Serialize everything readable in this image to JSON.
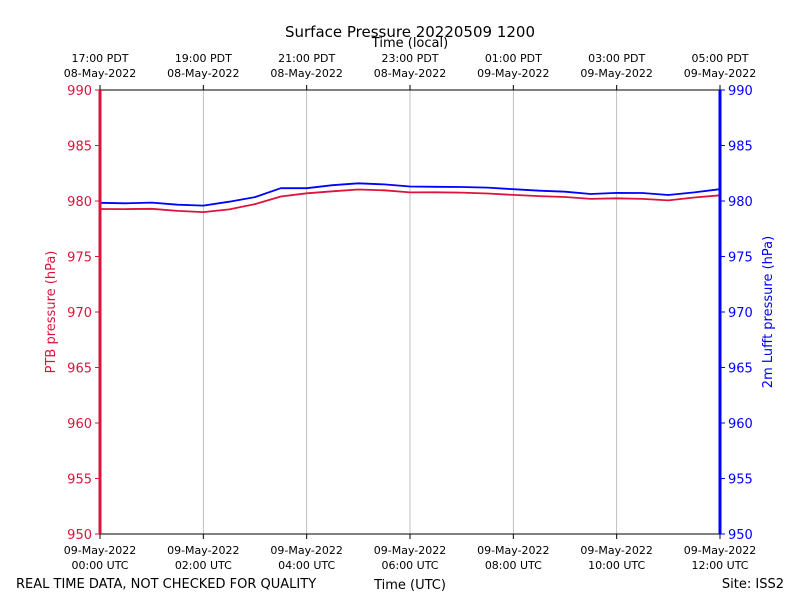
{
  "chart_data": {
    "type": "line",
    "title": "Surface Pressure 20220509 1200",
    "xlabel_bottom": "Time (UTC)",
    "xlabel_top": "Time (local)",
    "ylabel_left": "PTB pressure (hPa)",
    "ylabel_right": "2m Lufft pressure (hPa)",
    "xlim_hours": [
      0,
      12
    ],
    "ylim": [
      950,
      990
    ],
    "y_ticks": [
      950,
      955,
      960,
      965,
      970,
      975,
      980,
      985,
      990
    ],
    "x_ticks_bottom": [
      {
        "h": 0,
        "l1": "09-May-2022",
        "l2": "00:00 UTC"
      },
      {
        "h": 2,
        "l1": "09-May-2022",
        "l2": "02:00 UTC"
      },
      {
        "h": 4,
        "l1": "09-May-2022",
        "l2": "04:00 UTC"
      },
      {
        "h": 6,
        "l1": "09-May-2022",
        "l2": "06:00 UTC"
      },
      {
        "h": 8,
        "l1": "09-May-2022",
        "l2": "08:00 UTC"
      },
      {
        "h": 10,
        "l1": "09-May-2022",
        "l2": "10:00 UTC"
      },
      {
        "h": 12,
        "l1": "09-May-2022",
        "l2": "12:00 UTC"
      }
    ],
    "x_ticks_top": [
      {
        "h": 0,
        "l1": "17:00 PDT",
        "l2": "08-May-2022"
      },
      {
        "h": 2,
        "l1": "19:00 PDT",
        "l2": "08-May-2022"
      },
      {
        "h": 4,
        "l1": "21:00 PDT",
        "l2": "08-May-2022"
      },
      {
        "h": 6,
        "l1": "23:00 PDT",
        "l2": "08-May-2022"
      },
      {
        "h": 8,
        "l1": "01:00 PDT",
        "l2": "09-May-2022"
      },
      {
        "h": 10,
        "l1": "03:00 PDT",
        "l2": "09-May-2022"
      },
      {
        "h": 12,
        "l1": "05:00 PDT",
        "l2": "09-May-2022"
      }
    ],
    "grid": "vertical",
    "series": [
      {
        "name": "PTB pressure (hPa)",
        "color": "#dc143c",
        "axis": "left",
        "x": [
          0,
          0.5,
          1,
          1.5,
          2,
          2.5,
          3,
          3.5,
          4,
          4.5,
          5,
          5.5,
          6,
          6.5,
          7,
          7.5,
          8,
          8.5,
          9,
          9.5,
          10,
          10.5,
          11,
          11.5,
          12
        ],
        "values": [
          979.3,
          979.25,
          979.3,
          979.1,
          979.0,
          979.25,
          979.7,
          980.4,
          980.7,
          980.9,
          981.05,
          980.95,
          980.8,
          980.8,
          980.75,
          980.7,
          980.55,
          980.45,
          980.35,
          980.2,
          980.25,
          980.2,
          980.05,
          980.3,
          980.5
        ]
      },
      {
        "name": "2m Lufft pressure (hPa)",
        "color": "#0000ff",
        "axis": "right",
        "x": [
          0,
          0.5,
          1,
          1.5,
          2,
          2.5,
          3,
          3.5,
          4,
          4.5,
          5,
          5.5,
          6,
          6.5,
          7,
          7.5,
          8,
          8.5,
          9,
          9.5,
          10,
          10.5,
          11,
          11.5,
          12
        ],
        "values": [
          979.85,
          979.8,
          979.85,
          979.65,
          979.6,
          979.95,
          980.35,
          981.15,
          981.15,
          981.4,
          981.6,
          981.5,
          981.3,
          981.3,
          981.25,
          981.2,
          981.05,
          980.95,
          980.85,
          980.65,
          980.75,
          980.7,
          980.55,
          980.8,
          981.05
        ]
      }
    ]
  },
  "footer": {
    "left_note": "REAL TIME DATA, NOT CHECKED FOR QUALITY",
    "site": "Site: ISS2"
  }
}
